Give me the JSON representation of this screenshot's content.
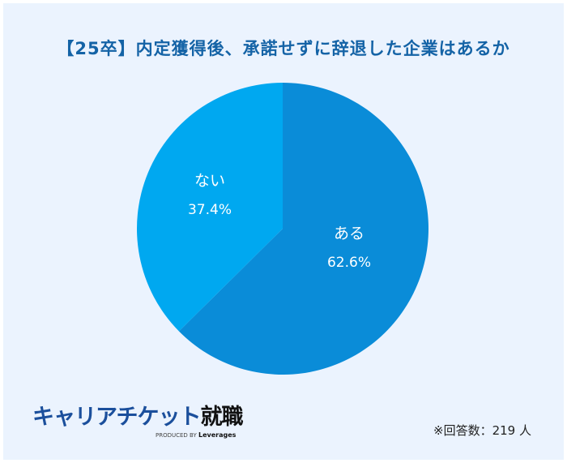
{
  "chart_data": {
    "type": "pie",
    "title": "【25卒】内定獲得後、承諾せずに辞退した企業はあるか",
    "slices": [
      {
        "label": "ある",
        "value": 62.6,
        "display": "62.6%",
        "color": "#0a8cd8"
      },
      {
        "label": "ない",
        "value": 37.4,
        "display": "37.4%",
        "color": "#00a8f0"
      }
    ],
    "start_angle": "top",
    "direction": "clockwise"
  },
  "logo": {
    "main": "キャリアチケット",
    "accent": "就職",
    "sub_prefix": "PRODUCED BY",
    "sub_brand": "Leverages"
  },
  "note": "※回答数：219 人",
  "colors": {
    "background": "#ebf3fe",
    "title": "#1463a6"
  }
}
